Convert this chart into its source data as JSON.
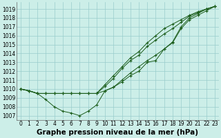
{
  "background_color": "#cceee8",
  "grid_color": "#99cccc",
  "line_color": "#1a5c1a",
  "marker_color": "#1a5c1a",
  "ylabel_values": [
    1007,
    1008,
    1009,
    1010,
    1011,
    1012,
    1013,
    1014,
    1015,
    1016,
    1017,
    1018,
    1019
  ],
  "xlabel_values": [
    0,
    1,
    2,
    3,
    4,
    5,
    6,
    7,
    8,
    9,
    10,
    11,
    12,
    13,
    14,
    15,
    16,
    17,
    18,
    19,
    20,
    21,
    22,
    23
  ],
  "xlabel_label": "Graphe pression niveau de la mer (hPa)",
  "ylim": [
    1006.5,
    1019.8
  ],
  "xlim": [
    -0.5,
    23.5
  ],
  "series": [
    [
      1010.0,
      1009.8,
      1009.5,
      1008.8,
      1008.0,
      1007.5,
      1007.3,
      1007.0,
      1007.5,
      1008.2,
      1009.8,
      1010.2,
      1010.8,
      1011.5,
      1012.0,
      1013.0,
      1013.2,
      1014.5,
      1015.3,
      1017.0,
      1018.0,
      1018.5,
      1019.0,
      1019.3
    ],
    [
      1010.0,
      1009.8,
      1009.5,
      1009.5,
      1009.5,
      1009.5,
      1009.5,
      1009.5,
      1009.5,
      1009.5,
      1009.8,
      1010.2,
      1011.0,
      1011.8,
      1012.5,
      1013.2,
      1013.8,
      1014.5,
      1015.2,
      1016.8,
      1017.8,
      1018.3,
      1018.8,
      1019.3
    ],
    [
      1010.0,
      1009.8,
      1009.5,
      1009.5,
      1009.5,
      1009.5,
      1009.5,
      1009.5,
      1009.5,
      1009.5,
      1010.3,
      1011.2,
      1012.3,
      1013.2,
      1013.8,
      1014.8,
      1015.5,
      1016.2,
      1016.8,
      1017.5,
      1018.2,
      1018.6,
      1019.0,
      1019.3
    ],
    [
      1010.0,
      1009.8,
      1009.5,
      1009.5,
      1009.5,
      1009.5,
      1009.5,
      1009.5,
      1009.5,
      1009.5,
      1010.5,
      1011.5,
      1012.5,
      1013.5,
      1014.2,
      1015.2,
      1016.0,
      1016.8,
      1017.3,
      1017.8,
      1018.3,
      1018.7,
      1019.0,
      1019.3
    ]
  ],
  "tick_fontsize": 5.5,
  "xlabel_fontsize": 7.5
}
